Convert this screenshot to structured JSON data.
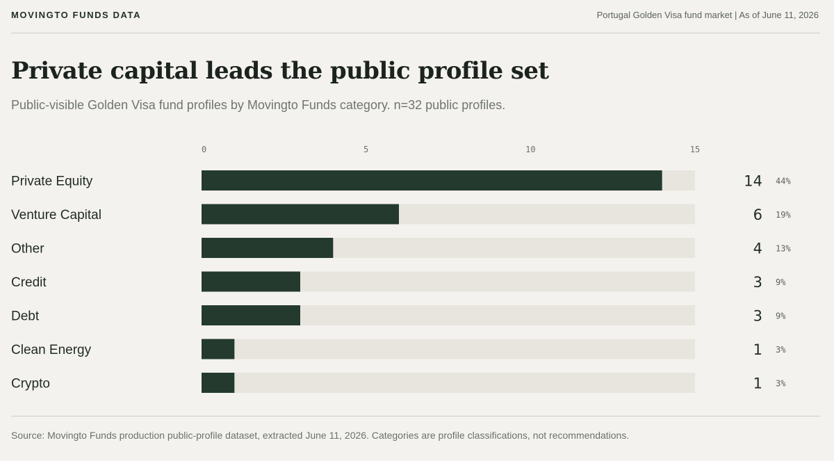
{
  "header": {
    "brand": "MOVINGTO FUNDS DATA",
    "context": "Portugal Golden Visa fund market | As of June 11, 2026"
  },
  "title": "Private capital leads the public profile set",
  "subtitle": "Public-visible Golden Visa fund profiles by Movingto Funds category. n=32 public profiles.",
  "footer": {
    "source": "Source: Movingto Funds production public-profile dataset, extracted June 11, 2026. Categories are profile classifications, not recommendations."
  },
  "colors": {
    "bar": "#243a2f",
    "track": "#e8e5df",
    "background": "#f4f2ee"
  },
  "chart_data": {
    "type": "bar",
    "orientation": "horizontal",
    "categories": [
      "Private Equity",
      "Venture Capital",
      "Other",
      "Credit",
      "Debt",
      "Clean Energy",
      "Crypto"
    ],
    "values": [
      14,
      6,
      4,
      3,
      3,
      1,
      1
    ],
    "percent_labels": [
      "44%",
      "19%",
      "13%",
      "9%",
      "9%",
      "3%",
      "3%"
    ],
    "xlim": [
      0,
      15
    ],
    "xticks": [
      0,
      5,
      10,
      15
    ],
    "axis_position": "top",
    "grid": false,
    "legend": "none"
  }
}
